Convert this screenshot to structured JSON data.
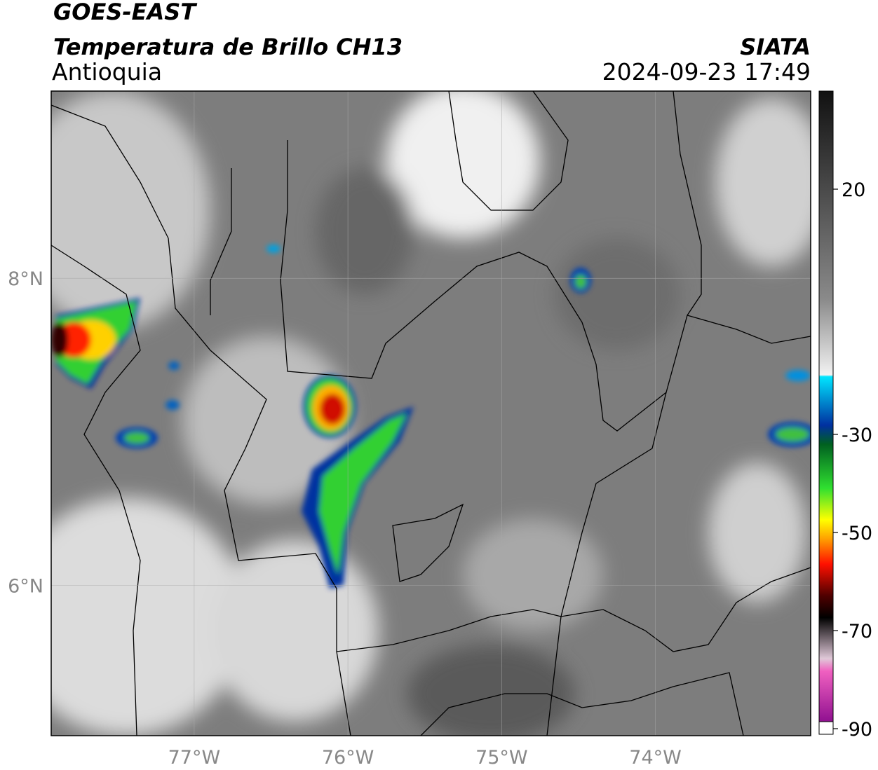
{
  "header": {
    "title": "GOES-EAST",
    "subtitle": "Temperatura de Brillo CH13",
    "region": "Antioquia",
    "source": "SIATA",
    "datetime": "2024-09-23 17:49"
  },
  "map": {
    "lonlim": [
      -77.93,
      -72.99
    ],
    "latlim": [
      5.02,
      9.22
    ],
    "lonticks": [
      {
        "value": -77,
        "label": "77°W"
      },
      {
        "value": -76,
        "label": "76°W"
      },
      {
        "value": -75,
        "label": "75°W"
      },
      {
        "value": -74,
        "label": "74°W"
      }
    ],
    "latticks": [
      {
        "value": 8,
        "label": "8°N"
      },
      {
        "value": 6,
        "label": "6°N"
      }
    ]
  },
  "colorbar": {
    "lim": [
      -90,
      40
    ],
    "ticks": [
      20,
      -30,
      -50,
      -70,
      -90
    ]
  }
}
